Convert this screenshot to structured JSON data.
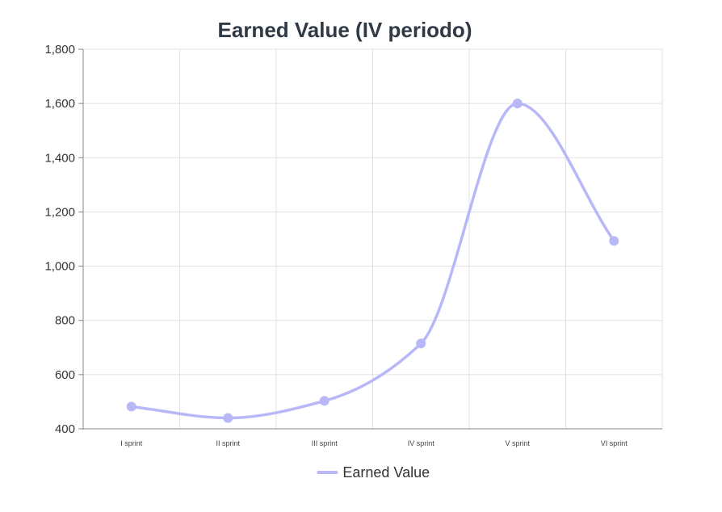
{
  "chart_data": {
    "type": "line",
    "title": "Earned Value (IV periodo)",
    "xlabel": "",
    "ylabel": "",
    "categories": [
      "I sprint",
      "II sprint",
      "III sprint",
      "IV sprint",
      "V sprint",
      "VI sprint"
    ],
    "series": [
      {
        "name": "Earned Value",
        "values": [
          482,
          440,
          503,
          715,
          1600,
          1093
        ],
        "color": "#b8b8f8"
      }
    ],
    "ylim": [
      400,
      1800
    ],
    "yticks": [
      400,
      600,
      800,
      1000,
      1200,
      1400,
      1600,
      1800
    ],
    "ytick_labels": [
      "400",
      "600",
      "800",
      "1,000",
      "1,200",
      "1,400",
      "1,600",
      "1,800"
    ],
    "grid": true,
    "smooth": true,
    "legend_position": "bottom-center"
  }
}
